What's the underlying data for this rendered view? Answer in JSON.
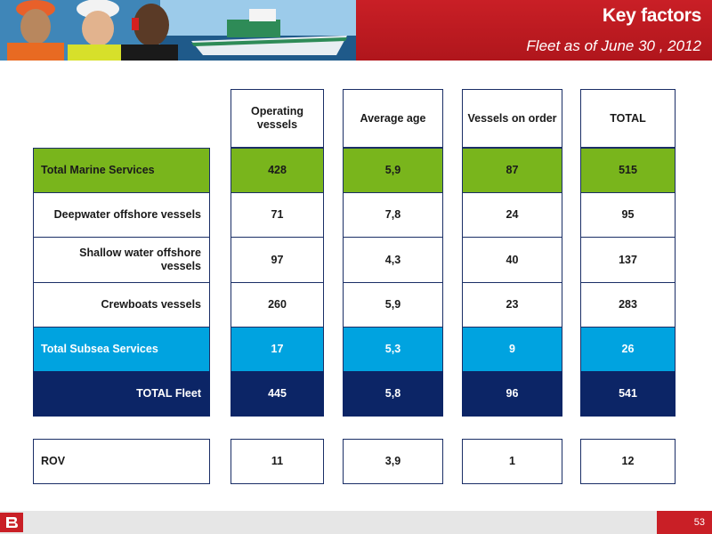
{
  "header": {
    "title": "Key factors",
    "subtitle": "Fleet as of June 30 , 2012"
  },
  "columns": {
    "operating": "Operating vessels",
    "age": "Average age",
    "order": "Vessels on order",
    "total": "TOTAL"
  },
  "rows": [
    {
      "label": "Total Marine Services",
      "operating": "428",
      "age": "5,9",
      "order": "87",
      "total": "515"
    },
    {
      "label": "Deepwater offshore vessels",
      "operating": "71",
      "age": "7,8",
      "order": "24",
      "total": "95"
    },
    {
      "label": "Shallow water offshore vessels",
      "operating": "97",
      "age": "4,3",
      "order": "40",
      "total": "137"
    },
    {
      "label": "Crewboats vessels",
      "operating": "260",
      "age": "5,9",
      "order": "23",
      "total": "283"
    },
    {
      "label": "Total Subsea Services",
      "operating": "17",
      "age": "5,3",
      "order": "9",
      "total": "26"
    },
    {
      "label": "TOTAL Fleet",
      "operating": "445",
      "age": "5,8",
      "order": "96",
      "total": "541"
    }
  ],
  "rov": {
    "label": "ROV",
    "operating": "11",
    "age": "3,9",
    "order": "1",
    "total": "12"
  },
  "footer": {
    "page_number": "53",
    "logo_icon": "company-logo-icon"
  },
  "colors": {
    "brand_red": "#c91f26",
    "marine_green": "#79b51c",
    "subsea_blue": "#00a3e0",
    "total_navy": "#0c2566"
  }
}
